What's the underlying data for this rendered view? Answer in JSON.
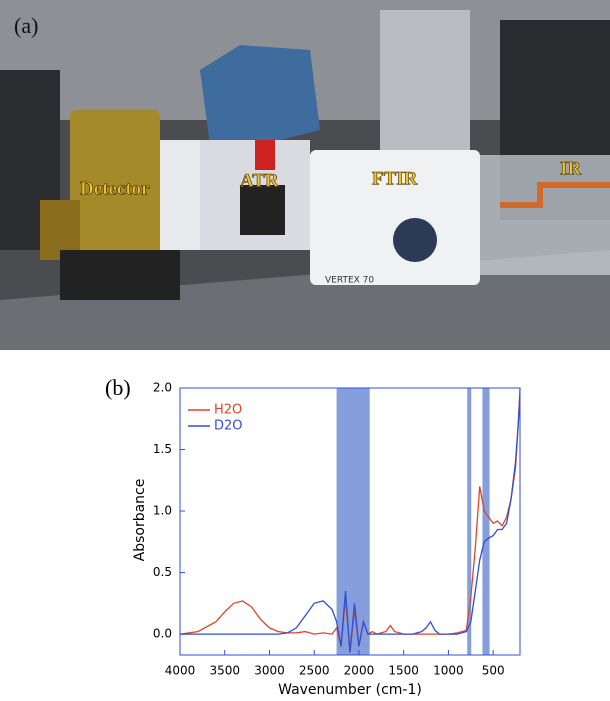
{
  "photo": {
    "panel_label": "(a)",
    "annotations": [
      "Detector",
      "ATR",
      "FTIR",
      "IR"
    ],
    "device_text": "VERTEX 70"
  },
  "chart_data": {
    "type": "line",
    "panel_label": "(b)",
    "xlabel": "Wavenumber (cm-1)",
    "ylabel": "Absorbance",
    "xlim": [
      4000,
      200
    ],
    "ylim": [
      -0.17,
      2.0
    ],
    "xticks": [
      4000,
      3500,
      3000,
      2500,
      2000,
      1500,
      1000,
      500
    ],
    "yticks": [
      {
        "value": 0,
        "label": "0.0"
      },
      {
        "value": 0.5,
        "label": "0.5"
      },
      {
        "value": 1,
        "label": "1.0"
      },
      {
        "value": 1.5,
        "label": "1.5"
      },
      {
        "value": 2,
        "label": "2.0"
      }
    ],
    "legend": "top-left",
    "shaded_ranges": [
      [
        2250,
        1880
      ],
      [
        790,
        745
      ],
      [
        620,
        540
      ]
    ],
    "shade_color": "#5b7fd0",
    "x": [
      4000,
      3800,
      3600,
      3500,
      3400,
      3300,
      3200,
      3100,
      3000,
      2900,
      2800,
      2700,
      2600,
      2500,
      2400,
      2300,
      2250,
      2200,
      2150,
      2100,
      2050,
      2000,
      1950,
      1900,
      1850,
      1800,
      1700,
      1650,
      1600,
      1500,
      1400,
      1300,
      1250,
      1200,
      1150,
      1100,
      1000,
      900,
      800,
      750,
      700,
      650,
      600,
      550,
      500,
      450,
      400,
      350,
      300,
      250,
      220,
      200
    ],
    "series": [
      {
        "name": "H2O",
        "color": "#e0442a",
        "values": [
          0.0,
          0.02,
          0.1,
          0.18,
          0.25,
          0.27,
          0.22,
          0.12,
          0.05,
          0.02,
          0.01,
          0.01,
          0.02,
          0.0,
          0.01,
          0.0,
          0.05,
          -0.1,
          0.3,
          -0.15,
          0.2,
          -0.1,
          0.1,
          0.0,
          0.02,
          0.0,
          0.02,
          0.07,
          0.02,
          0.0,
          0.0,
          0.0,
          0.0,
          0.0,
          0.0,
          0.0,
          0.0,
          0.01,
          0.03,
          0.3,
          0.7,
          1.2,
          1.0,
          0.95,
          0.9,
          0.92,
          0.88,
          0.95,
          1.1,
          1.35,
          1.7,
          2.0
        ]
      },
      {
        "name": "D2O",
        "color": "#2f4fd6",
        "values": [
          0.0,
          0.0,
          0.0,
          0.0,
          0.0,
          0.0,
          0.0,
          0.0,
          0.0,
          0.0,
          0.01,
          0.05,
          0.15,
          0.25,
          0.27,
          0.2,
          0.1,
          -0.1,
          0.35,
          -0.15,
          0.25,
          -0.1,
          0.1,
          0.0,
          0.0,
          0.0,
          0.0,
          0.0,
          0.0,
          0.0,
          0.0,
          0.02,
          0.05,
          0.1,
          0.03,
          0.0,
          0.0,
          0.0,
          0.02,
          0.1,
          0.35,
          0.6,
          0.75,
          0.78,
          0.8,
          0.85,
          0.85,
          0.9,
          1.1,
          1.4,
          1.7,
          1.95
        ]
      }
    ]
  }
}
